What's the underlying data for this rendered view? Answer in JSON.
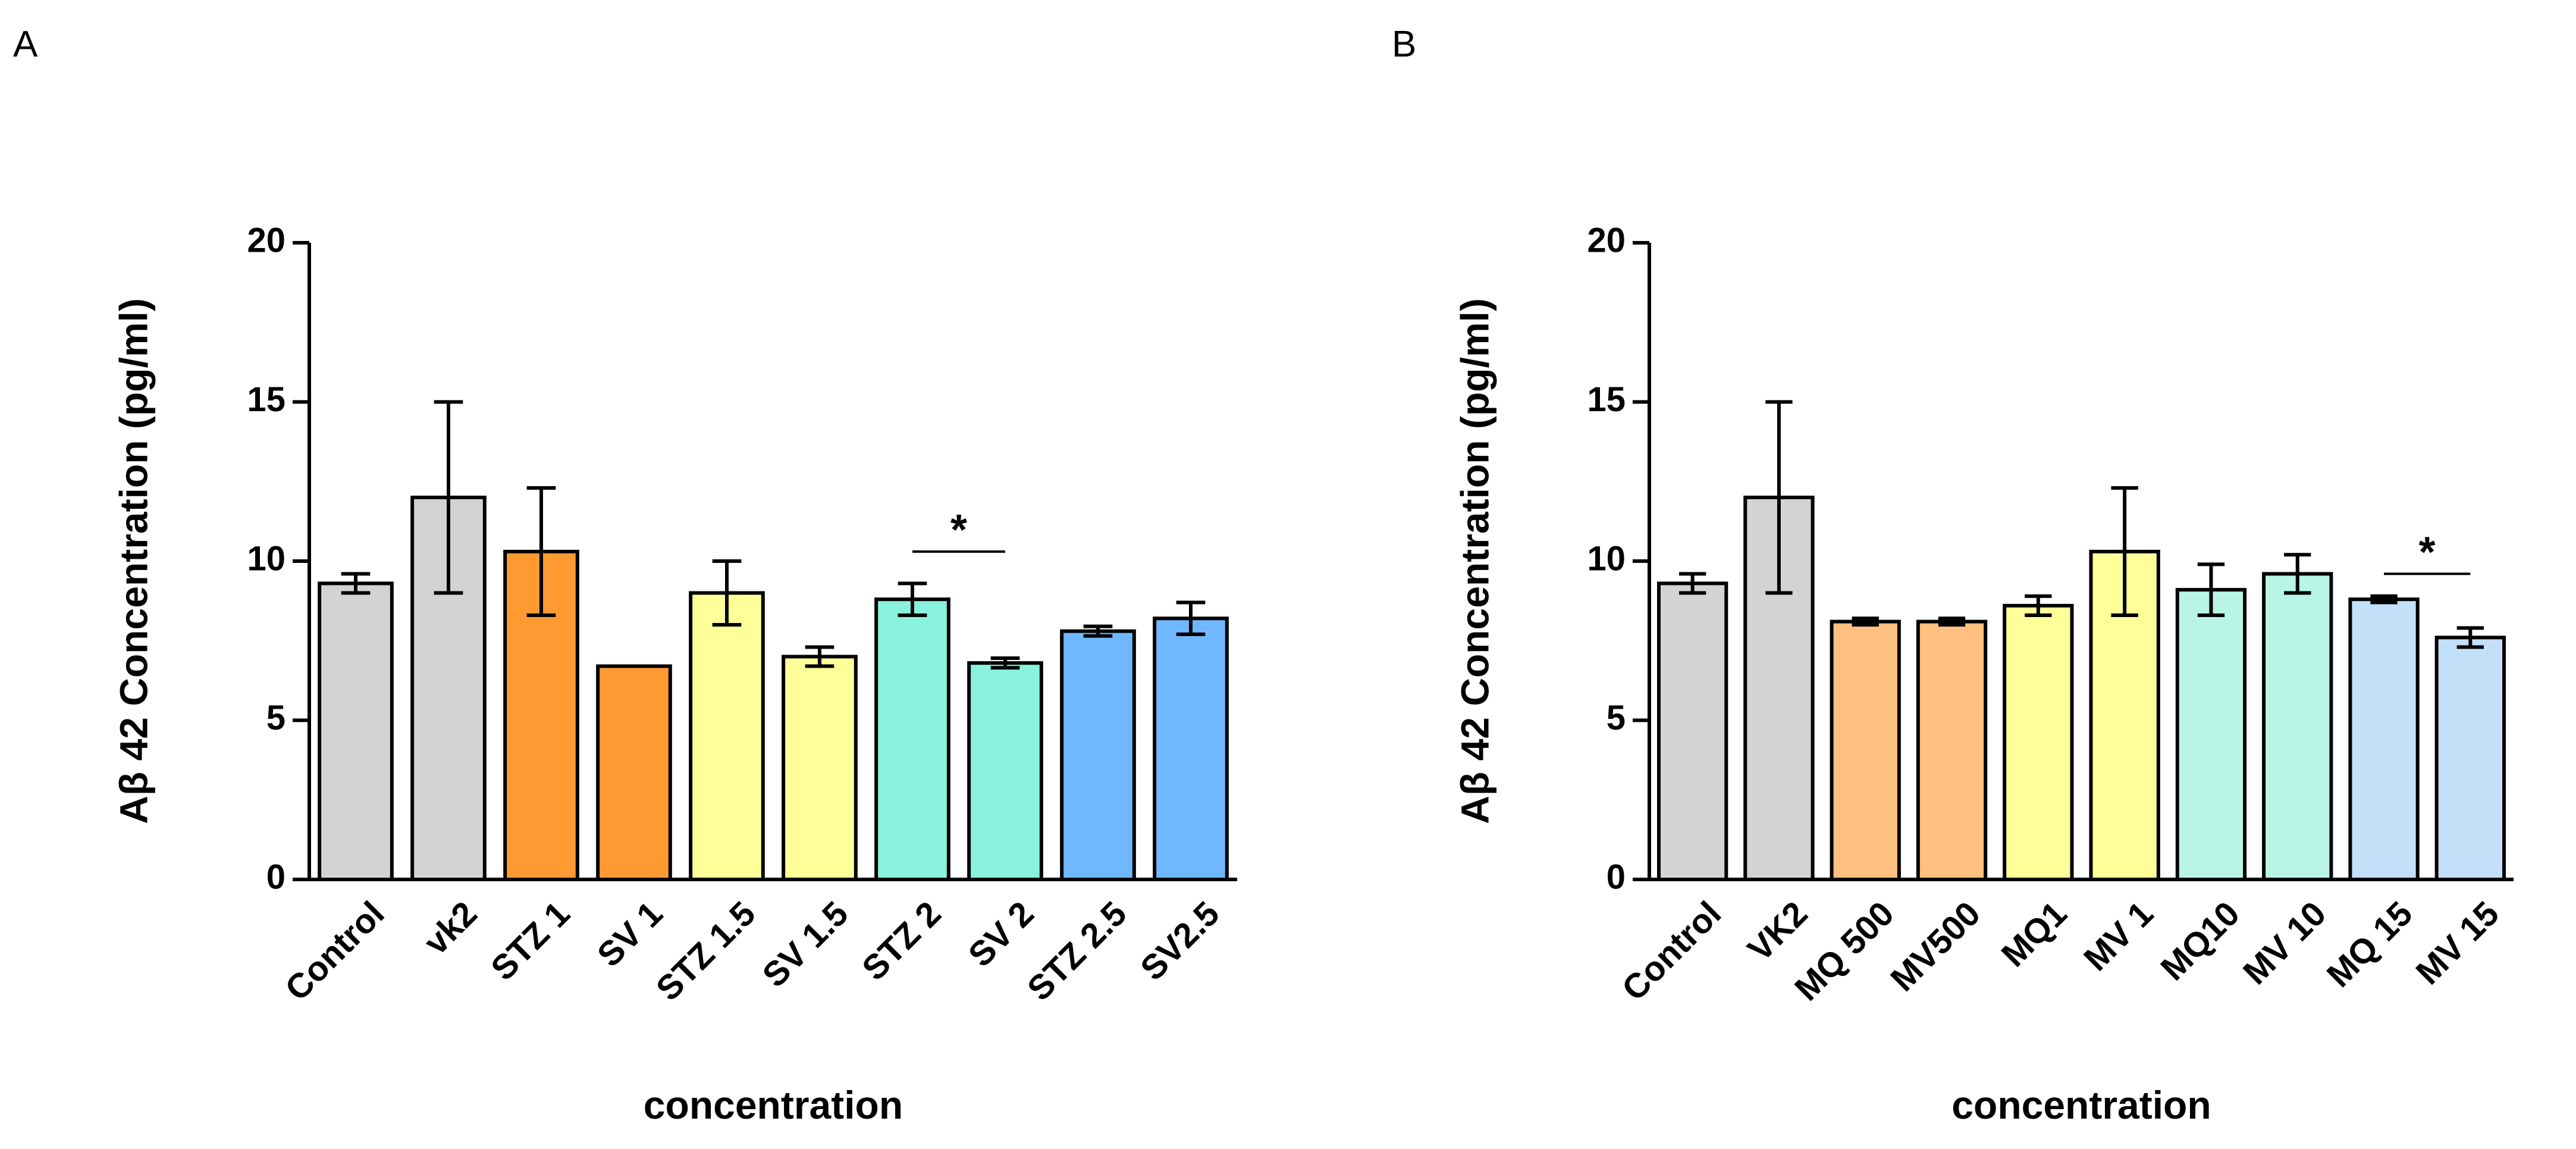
{
  "chart_data": [
    {
      "panel": "A",
      "type": "bar",
      "ylabel": "Aβ 42 Concentration (pg/ml)",
      "xlabel": "concentration",
      "ylim": [
        0,
        20
      ],
      "yticks": [
        0,
        5,
        10,
        15,
        20
      ],
      "grid": false,
      "categories": [
        "Control",
        "vk2",
        "STZ 1",
        "SV 1",
        "STZ 1.5",
        "SV 1.5",
        "STZ 2",
        "SV 2",
        "STZ 2.5",
        "SV2.5"
      ],
      "values": [
        9.3,
        12.0,
        10.3,
        6.7,
        9.0,
        7.0,
        8.8,
        6.8,
        7.8,
        8.2
      ],
      "errors": [
        0.3,
        3.0,
        2.0,
        0.0,
        1.0,
        0.3,
        0.5,
        0.15,
        0.15,
        0.5
      ],
      "colors": [
        "#d3d3d3",
        "#d3d3d3",
        "#ff9a33",
        "#ff9a33",
        "#ffff99",
        "#ffff99",
        "#88f2dd",
        "#88f2dd",
        "#6fb8ff",
        "#6fb8ff"
      ],
      "significance": [
        {
          "from": 6,
          "to": 7,
          "y": 10.3,
          "label": "*"
        }
      ]
    },
    {
      "panel": "B",
      "type": "bar",
      "ylabel": "Aβ 42 Concentration (pg/ml)",
      "xlabel": "concentration",
      "ylim": [
        0,
        20
      ],
      "yticks": [
        0,
        5,
        10,
        15,
        20
      ],
      "grid": false,
      "categories": [
        "Control",
        "VK2",
        "MQ 500",
        "MV500",
        "MQ1",
        "MV 1",
        "MQ10",
        "MV 10",
        "MQ 15",
        "MV 15"
      ],
      "values": [
        9.3,
        12.0,
        8.1,
        8.1,
        8.6,
        10.3,
        9.1,
        9.6,
        8.8,
        7.6
      ],
      "errors": [
        0.3,
        3.0,
        0.1,
        0.1,
        0.3,
        2.0,
        0.8,
        0.6,
        0.1,
        0.3
      ],
      "colors": [
        "#d3d3d3",
        "#d3d3d3",
        "#ffc080",
        "#ffc080",
        "#ffff99",
        "#ffff99",
        "#b8f5e6",
        "#b8f5e6",
        "#c4e0f8",
        "#c4e0f8"
      ],
      "significance": [
        {
          "from": 8,
          "to": 9,
          "y": 9.6,
          "label": "*"
        }
      ]
    }
  ]
}
